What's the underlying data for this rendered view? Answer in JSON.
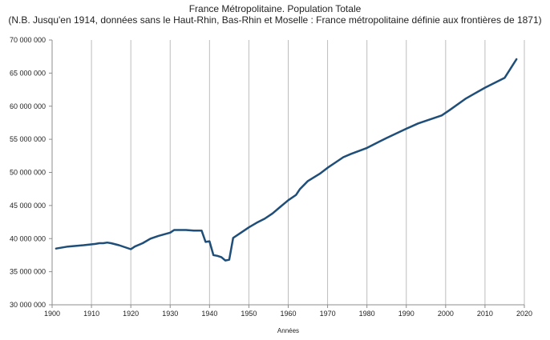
{
  "chart_data": {
    "type": "line",
    "title": "France Métropolitaine. Population Totale",
    "subtitle": "(N.B. Jusqu'en 1914, données sans le Haut-Rhin, Bas-Rhin et Moselle : France métropolitaine définie aux frontières de 1871)",
    "xlabel": "Années",
    "ylabel": "",
    "xlim": [
      1900,
      2020
    ],
    "ylim": [
      30000000,
      70000000
    ],
    "x_ticks": [
      1900,
      1910,
      1920,
      1930,
      1940,
      1950,
      1960,
      1970,
      1980,
      1990,
      2000,
      2010,
      2020
    ],
    "y_ticks": [
      30000000,
      35000000,
      40000000,
      45000000,
      50000000,
      55000000,
      60000000,
      65000000,
      70000000
    ],
    "y_tick_labels": [
      "30 000 000",
      "35 000 000",
      "40 000 000",
      "45 000 000",
      "50 000 000",
      "55 000 000",
      "60 000 000",
      "65 000 000",
      "70 000 000"
    ],
    "grid": "vertical",
    "legend": "none",
    "color": "#1f4e79",
    "series": [
      {
        "name": "",
        "x": [
          1901,
          1904,
          1908,
          1911,
          1912,
          1913,
          1914,
          1915,
          1917,
          1920,
          1921,
          1923,
          1925,
          1927,
          1930,
          1931,
          1932,
          1934,
          1936,
          1938,
          1939,
          1940,
          1941,
          1942,
          1943,
          1944,
          1945,
          1946,
          1948,
          1950,
          1952,
          1954,
          1956,
          1958,
          1960,
          1962,
          1963,
          1965,
          1968,
          1970,
          1972,
          1974,
          1976,
          1980,
          1983,
          1985,
          1990,
          1993,
          1999,
          2001,
          2005,
          2007,
          2010,
          2015,
          2018
        ],
        "y": [
          38500000,
          38800000,
          39000000,
          39200000,
          39300000,
          39300000,
          39400000,
          39300000,
          39000000,
          38400000,
          38800000,
          39300000,
          40000000,
          40400000,
          40900000,
          41300000,
          41300000,
          41300000,
          41200000,
          41200000,
          39500000,
          39600000,
          37500000,
          37400000,
          37200000,
          36700000,
          36800000,
          40100000,
          40900000,
          41700000,
          42400000,
          43000000,
          43800000,
          44800000,
          45800000,
          46600000,
          47500000,
          48700000,
          49800000,
          50700000,
          51500000,
          52300000,
          52800000,
          53700000,
          54600000,
          55200000,
          56600000,
          57400000,
          58600000,
          59400000,
          61100000,
          61800000,
          62800000,
          64300000,
          67100000
        ]
      }
    ]
  },
  "colors": {
    "line": "#1f4e79",
    "grid": "#bdbdbd",
    "axis": "#8c8c8c"
  }
}
